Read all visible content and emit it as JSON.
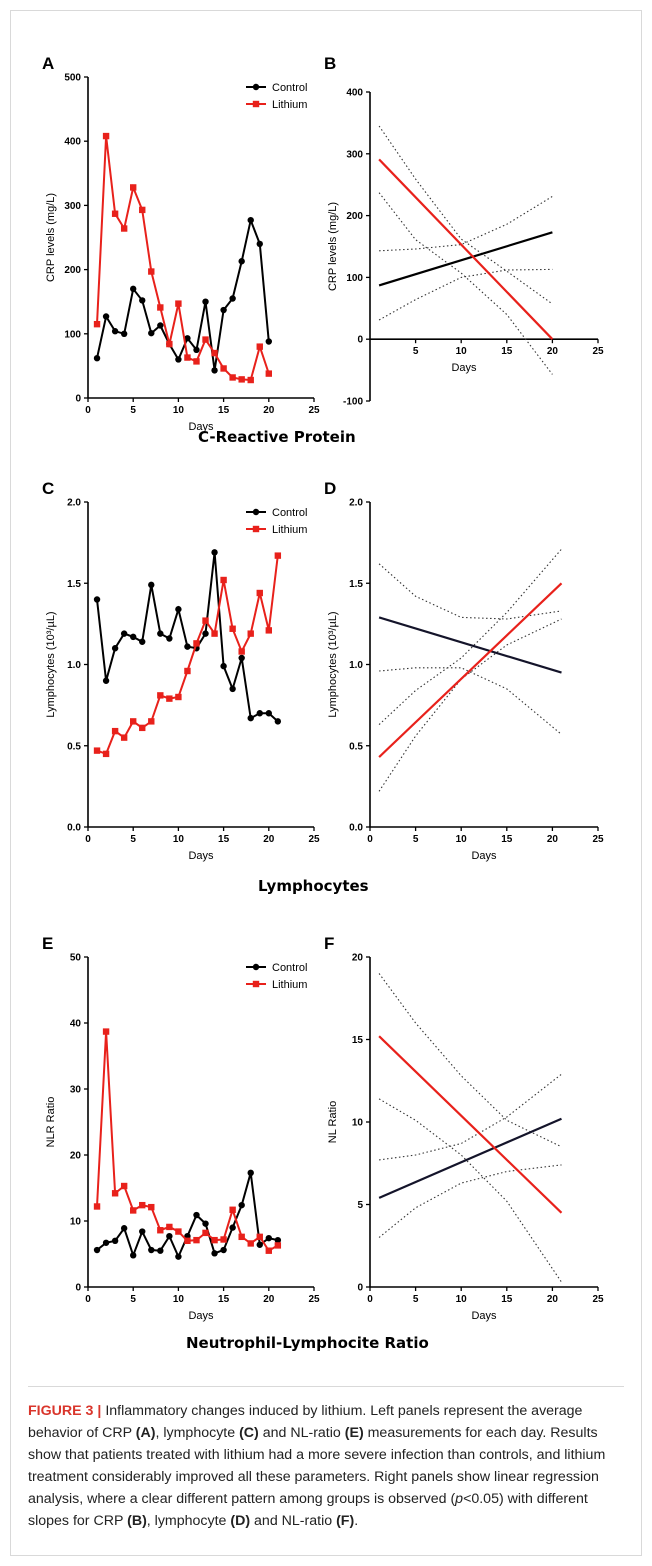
{
  "colors": {
    "control": "#000000",
    "lithium": "#e8211b",
    "ci": "#333333",
    "regression_control": "#14142a"
  },
  "sections": [
    {
      "title": "C-Reactive Protein"
    },
    {
      "title": "Lymphocytes"
    },
    {
      "title": "Neutrophil-Lymphocite Ratio"
    }
  ],
  "chart_data": [
    {
      "panel": "A",
      "type": "line",
      "xlabel": "Days",
      "ylabel": "CRP levels (mg/L)",
      "xlim": [
        0,
        25
      ],
      "ylim": [
        0,
        500
      ],
      "xticks": [
        0,
        5,
        10,
        15,
        20,
        25
      ],
      "yticks": [
        0,
        100,
        200,
        300,
        400,
        500
      ],
      "legend": "top-right",
      "series": [
        {
          "name": "Control",
          "color": "#000000",
          "marker": "circle",
          "x": [
            1,
            2,
            3,
            4,
            5,
            6,
            7,
            8,
            9,
            10,
            11,
            12,
            13,
            14,
            15,
            16,
            17,
            18,
            19,
            20
          ],
          "y": [
            62,
            127,
            104,
            100,
            170,
            152,
            101,
            113,
            84,
            60,
            93,
            75,
            150,
            43,
            137,
            155,
            213,
            277,
            240,
            88
          ]
        },
        {
          "name": "Lithium",
          "color": "#e8211b",
          "marker": "square",
          "x": [
            1,
            2,
            3,
            4,
            5,
            6,
            7,
            8,
            9,
            10,
            11,
            12,
            13,
            14,
            15,
            16,
            17,
            18,
            19,
            20
          ],
          "y": [
            115,
            408,
            287,
            264,
            328,
            293,
            197,
            141,
            84,
            147,
            63,
            57,
            91,
            70,
            46,
            32,
            29,
            28,
            80,
            38
          ]
        }
      ]
    },
    {
      "panel": "B",
      "type": "line",
      "xlabel": "Days",
      "ylabel": "CRP levels (mg/L)",
      "xlim": [
        0,
        25
      ],
      "ylim": [
        -100,
        400
      ],
      "xticks": [
        5,
        10,
        15,
        20,
        25
      ],
      "yticks": [
        -100,
        0,
        100,
        200,
        300,
        400
      ],
      "series": [
        {
          "kind": "regression",
          "color": "#000000",
          "x": [
            1,
            20
          ],
          "y": [
            87,
            173
          ]
        },
        {
          "kind": "regression",
          "color": "#e8211b",
          "x": [
            1,
            20
          ],
          "y": [
            291,
            0
          ]
        }
      ],
      "confidence_bands": [
        {
          "x": [
            1,
            5,
            10,
            15,
            20
          ],
          "upper": [
            143,
            146,
            153,
            186,
            231
          ]
        },
        {
          "x": [
            1,
            5,
            10,
            15,
            20
          ],
          "lower": [
            31,
            64,
            100,
            112,
            113
          ]
        },
        {
          "x": [
            1,
            5,
            10,
            15,
            20
          ],
          "upper": [
            345,
            259,
            162,
            110,
            57
          ]
        },
        {
          "x": [
            1,
            5,
            10,
            15,
            20
          ],
          "lower": [
            237,
            161,
            107,
            40,
            -57
          ]
        }
      ]
    },
    {
      "panel": "C",
      "type": "line",
      "xlabel": "Days",
      "ylabel": "Lymphocytes (10³/µL)",
      "xlim": [
        0,
        25
      ],
      "ylim": [
        0.0,
        2.0
      ],
      "xticks": [
        0,
        5,
        10,
        15,
        20,
        25
      ],
      "yticks": [
        0.0,
        0.5,
        1.0,
        1.5,
        2.0
      ],
      "legend": "top-right",
      "series": [
        {
          "name": "Control",
          "color": "#000000",
          "marker": "circle",
          "x": [
            1,
            2,
            3,
            4,
            5,
            6,
            7,
            8,
            9,
            10,
            11,
            12,
            13,
            14,
            15,
            16,
            17,
            18,
            19,
            20,
            21
          ],
          "y": [
            1.4,
            0.9,
            1.1,
            1.19,
            1.17,
            1.14,
            1.49,
            1.19,
            1.16,
            1.34,
            1.11,
            1.1,
            1.19,
            1.69,
            0.99,
            0.85,
            1.04,
            0.67,
            0.7,
            0.7,
            0.65
          ]
        },
        {
          "name": "Lithium",
          "color": "#e8211b",
          "marker": "square",
          "x": [
            1,
            2,
            3,
            4,
            5,
            6,
            7,
            8,
            9,
            10,
            11,
            12,
            13,
            14,
            15,
            16,
            17,
            18,
            19,
            20,
            21
          ],
          "y": [
            0.47,
            0.45,
            0.59,
            0.55,
            0.65,
            0.61,
            0.65,
            0.81,
            0.79,
            0.8,
            0.96,
            1.13,
            1.27,
            1.19,
            1.52,
            1.22,
            1.08,
            1.19,
            1.44,
            1.21,
            1.67
          ]
        }
      ]
    },
    {
      "panel": "D",
      "type": "line",
      "xlabel": "Days",
      "ylabel": "Lymphocytes (10³/µL)",
      "xlim": [
        0,
        25
      ],
      "ylim": [
        0.0,
        2.0
      ],
      "xticks": [
        0,
        5,
        10,
        15,
        20,
        25
      ],
      "yticks": [
        0.0,
        0.5,
        1.0,
        1.5,
        2.0
      ],
      "series": [
        {
          "kind": "regression",
          "color": "#14142a",
          "x": [
            1,
            21
          ],
          "y": [
            1.29,
            0.95
          ]
        },
        {
          "kind": "regression",
          "color": "#e8211b",
          "x": [
            1,
            21
          ],
          "y": [
            0.43,
            1.5
          ]
        }
      ],
      "confidence_bands": [
        {
          "x": [
            1,
            5,
            10,
            15,
            21
          ],
          "upper": [
            1.62,
            1.42,
            1.29,
            1.28,
            1.33
          ]
        },
        {
          "x": [
            1,
            5,
            10,
            15,
            21
          ],
          "lower": [
            0.96,
            0.98,
            0.98,
            0.85,
            0.57
          ]
        },
        {
          "x": [
            1,
            5,
            10,
            15,
            21
          ],
          "upper": [
            0.63,
            0.84,
            1.04,
            1.32,
            1.71
          ]
        },
        {
          "x": [
            1,
            5,
            10,
            15,
            21
          ],
          "lower": [
            0.22,
            0.56,
            0.91,
            1.12,
            1.28
          ]
        }
      ]
    },
    {
      "panel": "E",
      "type": "line",
      "xlabel": "Days",
      "ylabel": "NLR Ratio",
      "xlim": [
        0,
        25
      ],
      "ylim": [
        0,
        50
      ],
      "xticks": [
        0,
        5,
        10,
        15,
        20,
        25
      ],
      "yticks": [
        0,
        10,
        20,
        30,
        40,
        50
      ],
      "legend": "top-right",
      "series": [
        {
          "name": "Control",
          "color": "#000000",
          "marker": "circle",
          "x": [
            1,
            2,
            3,
            4,
            5,
            6,
            7,
            8,
            9,
            10,
            11,
            12,
            13,
            14,
            15,
            16,
            17,
            18,
            19,
            20,
            21
          ],
          "y": [
            5.6,
            6.7,
            7.0,
            8.9,
            4.8,
            8.4,
            5.6,
            5.5,
            7.7,
            4.6,
            7.7,
            10.9,
            9.6,
            5.1,
            5.6,
            9.0,
            12.4,
            17.3,
            6.4,
            7.4,
            7.1
          ]
        },
        {
          "name": "Lithium",
          "color": "#e8211b",
          "marker": "square",
          "x": [
            1,
            2,
            3,
            4,
            5,
            6,
            7,
            8,
            9,
            10,
            11,
            12,
            13,
            14,
            15,
            16,
            17,
            18,
            19,
            20,
            21
          ],
          "y": [
            12.2,
            38.7,
            14.2,
            15.3,
            11.6,
            12.4,
            12.1,
            8.6,
            9.1,
            8.4,
            7.0,
            7.1,
            8.2,
            7.1,
            7.2,
            11.7,
            7.6,
            6.6,
            7.6,
            5.5,
            6.3
          ]
        }
      ]
    },
    {
      "panel": "F",
      "type": "line",
      "xlabel": "Days",
      "ylabel": "NL Ratio",
      "xlim": [
        0,
        25
      ],
      "ylim": [
        0,
        20
      ],
      "xticks": [
        0,
        5,
        10,
        15,
        20,
        25
      ],
      "yticks": [
        0,
        5,
        10,
        15,
        20
      ],
      "series": [
        {
          "kind": "regression",
          "color": "#14142a",
          "x": [
            1,
            21
          ],
          "y": [
            5.4,
            10.2
          ]
        },
        {
          "kind": "regression",
          "color": "#e8211b",
          "x": [
            1,
            21
          ],
          "y": [
            15.2,
            4.5
          ]
        }
      ],
      "confidence_bands": [
        {
          "x": [
            1,
            5,
            10,
            15,
            21
          ],
          "upper": [
            7.7,
            8.0,
            8.7,
            10.3,
            12.9
          ]
        },
        {
          "x": [
            1,
            5,
            10,
            15,
            21
          ],
          "lower": [
            3.0,
            4.8,
            6.3,
            7.0,
            7.4
          ]
        },
        {
          "x": [
            1,
            5,
            10,
            15,
            21
          ],
          "upper": [
            19.0,
            16.0,
            12.8,
            10.1,
            8.5
          ]
        },
        {
          "x": [
            1,
            5,
            10,
            15,
            21
          ],
          "lower": [
            11.4,
            10.1,
            8.0,
            5.2,
            0.3
          ]
        }
      ]
    }
  ],
  "caption": {
    "label": "FIGURE 3",
    "separator": "|",
    "t1": " Inflammatory changes induced by lithium. Left panels represent the average behavior of CRP ",
    "b1": "(A)",
    "t2": ", lymphocyte ",
    "b2": "(C)",
    "t3": " and NL-ratio ",
    "b3": "(E)",
    "t4": " measurements for each day. Results show that patients treated with lithium had a more severe infection than controls, and lithium treatment considerably improved all these parameters. Right panels show linear regression analysis, where a clear different pattern among groups is observed (",
    "i1": "p",
    "t5": "<0.05) with different slopes for CRP ",
    "b4": "(B)",
    "t6": ", lymphocyte ",
    "b5": "(D)",
    "t7": " and NL-ratio ",
    "b6": "(F)",
    "t8": "."
  }
}
